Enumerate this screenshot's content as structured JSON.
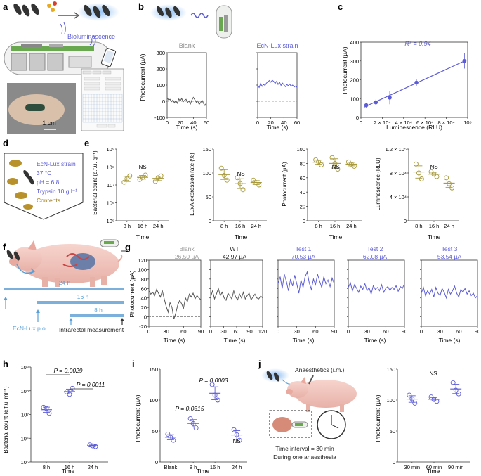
{
  "panel_letters": {
    "a": "a",
    "b": "b",
    "c": "c",
    "d": "d",
    "e": "e",
    "f": "f",
    "g": "g",
    "h": "h",
    "i": "i",
    "j": "j"
  },
  "panel_a": {
    "bioluminescence_label": "Bioluminescence",
    "scale_bar": "1 cm",
    "app_buttons": [
      "Gain",
      "Calibrate",
      "Start",
      "Stop",
      "Save",
      "Load"
    ]
  },
  "panel_b": {
    "ylabel": "Photocurrent (µA)",
    "xlabel": "Time (s)",
    "blank_title": "Blank",
    "strain_title": "EcN-Lux strain",
    "yticks": [
      "300",
      "200",
      "100",
      "0",
      "-100"
    ],
    "xticks": [
      "0",
      "20",
      "40",
      "60"
    ]
  },
  "panel_c": {
    "ylabel": "Photocurrent (µA)",
    "xlabel": "Luminescence (RLU)",
    "r2": "R² = 0.94",
    "yticks": [
      "0",
      "100",
      "200",
      "300",
      "400"
    ],
    "xtick_labels": [
      "0",
      "2 × 10⁴",
      "4 × 10⁴",
      "6 × 10⁴",
      "8 × 10⁴",
      "10⁵"
    ]
  },
  "panel_d": {
    "lines": [
      "EcN-Lux strain",
      "37 °C",
      "pH = 6.8",
      "Trypsin 10 g l⁻¹",
      "Contents"
    ]
  },
  "panel_e": {
    "xlabel": "Time",
    "xticks": [
      "8 h",
      "16 h",
      "24 h"
    ],
    "ns": "NS",
    "p1": {
      "ylabel": "Bacterial count (c.f.u. g⁻¹)",
      "yticks": [
        "10⁹",
        "10⁸",
        "10⁷",
        "10⁶",
        "10⁵"
      ]
    },
    "p2": {
      "ylabel": "LuxA expression rate (%)",
      "yticks": [
        "150",
        "100",
        "50",
        "0"
      ]
    },
    "p3": {
      "ylabel": "Photocurrent (µA)",
      "yticks": [
        "100",
        "80",
        "60",
        "40",
        "20",
        "0"
      ]
    },
    "p4": {
      "ylabel": "Luminescence (RLU)",
      "yticks": [
        "1.2 × 10⁵",
        "8 × 10⁴",
        "4 × 10⁴",
        "0"
      ]
    }
  },
  "panel_f": {
    "d24": "24 h",
    "d16": "16 h",
    "d8": "8 h",
    "oral": "EcN-Lux p.o.",
    "measure": "Intrarectal measurement"
  },
  "panel_g": {
    "ylabel": "Photocurrent (µA)",
    "xlabel": "Time (s)",
    "yticks": [
      "120",
      "100",
      "80",
      "60",
      "40",
      "20",
      "0",
      "-20"
    ],
    "xticks_120": [
      "0",
      "30",
      "60",
      "90",
      "120"
    ],
    "xticks_90": [
      "0",
      "30",
      "60",
      "90"
    ],
    "traces": [
      {
        "name": "Blank",
        "value": "26.50 µA"
      },
      {
        "name": "WT",
        "value": "42.97 µA"
      },
      {
        "name": "Test 1",
        "value": "70.53 µA"
      },
      {
        "name": "Test 2",
        "value": "62.08 µA"
      },
      {
        "name": "Test 3",
        "value": "53.54 µA"
      }
    ]
  },
  "panel_h": {
    "ylabel": "Bacterial count (c.f.u. ml⁻¹)",
    "xlabel": "Time",
    "yticks": [
      "10⁹",
      "10⁸",
      "10⁷",
      "10⁶",
      "10⁵"
    ],
    "xticks": [
      "8 h",
      "16 h",
      "24 h"
    ],
    "p1": "P = 0.0029",
    "p2": "P = 0.0011"
  },
  "panel_i": {
    "ylabel": "Photocurrent (µA)",
    "xlabel": "Time",
    "yticks": [
      "0",
      "50",
      "100",
      "150"
    ],
    "xticks": [
      "Blank",
      "8 h",
      "16 h",
      "24 h"
    ],
    "p1": "P = 0.0315",
    "p2": "P = 0.0003",
    "ns": "NS"
  },
  "panel_j": {
    "anaesthetics": "Anaesthetics (i.m.)",
    "interval": "Time interval = 30 min",
    "during": "During one anaesthesia",
    "ylabel": "Photocurrent (µA)",
    "xlabel": "Time",
    "yticks": [
      "0",
      "50",
      "100",
      "150"
    ],
    "xticks": [
      "30 min",
      "60 min",
      "90 min"
    ],
    "ns": "NS"
  },
  "chart_data": [
    {
      "type": "line",
      "id": "b_blank",
      "title": "Blank",
      "x_range": [
        0,
        60
      ],
      "ylim": [
        -100,
        300
      ],
      "values": [
        22,
        8,
        12,
        -2,
        8,
        -10,
        4,
        -12,
        14,
        2,
        18,
        -4,
        6,
        12,
        -8,
        2,
        -16,
        8,
        24,
        10,
        -6,
        2,
        -20,
        -8,
        6,
        -14,
        -26,
        -10
      ]
    },
    {
      "type": "line",
      "id": "b_strain",
      "title": "EcN-Lux strain",
      "x_range": [
        0,
        60
      ],
      "ylim": [
        -100,
        300
      ],
      "values": [
        95,
        85,
        110,
        92,
        104,
        98,
        112,
        120,
        128,
        118,
        130,
        122,
        110,
        124,
        104,
        118,
        98,
        112,
        102,
        90,
        104,
        96,
        106,
        92,
        100,
        88,
        94,
        86
      ]
    },
    {
      "type": "scatter",
      "id": "c",
      "xlim": [
        0,
        100000
      ],
      "ylim": [
        0,
        400
      ],
      "points": [
        {
          "x": 5000,
          "y": 65,
          "err": 12
        },
        {
          "x": 14000,
          "y": 80,
          "err": 15
        },
        {
          "x": 27000,
          "y": 105,
          "err": 35
        },
        {
          "x": 52000,
          "y": 185,
          "err": 20
        },
        {
          "x": 97000,
          "y": 300,
          "err": 40
        }
      ],
      "fit": {
        "x": [
          3000,
          97000
        ],
        "y": [
          55,
          300
        ]
      }
    },
    {
      "type": "scatter",
      "id": "e1",
      "log": true,
      "ylim": [
        5,
        9
      ],
      "groups": [
        [
          7.15,
          7.5,
          7.35
        ],
        [
          7.3,
          7.55,
          7.42
        ],
        [
          7.2,
          7.5,
          7.4
        ]
      ]
    },
    {
      "type": "scatter",
      "id": "e2",
      "ylim": [
        0,
        150
      ],
      "groups": [
        [
          110,
          85,
          95
        ],
        [
          90,
          65,
          78
        ],
        [
          85,
          75,
          80
        ]
      ]
    },
    {
      "type": "scatter",
      "id": "e3",
      "ylim": [
        0,
        100
      ],
      "groups": [
        [
          85,
          78,
          82
        ],
        [
          88,
          72,
          80
        ],
        [
          82,
          76,
          79
        ]
      ]
    },
    {
      "type": "scatter",
      "id": "e4",
      "ylim": [
        0,
        120000
      ],
      "groups": [
        [
          95000,
          70000,
          80000
        ],
        [
          82000,
          74000,
          78000
        ],
        [
          72000,
          55000,
          62000
        ]
      ]
    },
    {
      "type": "line",
      "id": "g_blank",
      "xmax": 90,
      "ylim": [
        -20,
        120
      ],
      "values": [
        55,
        48,
        52,
        45,
        58,
        50,
        42,
        55,
        38,
        22,
        10,
        30,
        20,
        -5,
        8,
        25,
        35,
        28,
        18,
        40,
        32,
        48,
        42,
        50,
        38,
        45,
        40,
        36
      ]
    },
    {
      "type": "line",
      "id": "g_wt",
      "xmax": 120,
      "ylim": [
        -20,
        120
      ],
      "values": [
        42,
        55,
        38,
        48,
        60,
        45,
        52,
        40,
        35,
        50,
        44,
        38,
        55,
        42,
        36,
        48,
        40,
        52,
        38,
        45,
        50,
        36,
        42,
        48,
        40,
        38,
        44,
        40
      ]
    },
    {
      "type": "line",
      "id": "g_t1",
      "xmax": 90,
      "ylim": [
        -20,
        120
      ],
      "values": [
        70,
        85,
        60,
        90,
        75,
        55,
        80,
        65,
        88,
        70,
        50,
        78,
        62,
        85,
        95,
        72,
        58,
        80,
        68,
        90,
        75,
        62,
        85,
        70,
        78,
        64,
        82,
        70
      ]
    },
    {
      "type": "line",
      "id": "g_t2",
      "xmax": 90,
      "ylim": [
        -20,
        120
      ],
      "values": [
        62,
        72,
        55,
        68,
        60,
        52,
        65,
        58,
        70,
        55,
        62,
        48,
        66,
        58,
        62,
        55,
        68,
        52,
        60,
        64,
        56,
        62,
        58,
        66,
        54,
        64,
        60,
        70
      ]
    },
    {
      "type": "line",
      "id": "g_t3",
      "xmax": 90,
      "ylim": [
        -20,
        120
      ],
      "values": [
        50,
        62,
        45,
        55,
        48,
        58,
        42,
        62,
        50,
        45,
        60,
        52,
        40,
        58,
        48,
        55,
        65,
        50,
        42,
        58,
        52,
        60,
        48,
        55,
        45,
        50,
        40,
        45
      ]
    },
    {
      "type": "scatter",
      "id": "h",
      "log": true,
      "ylim": [
        5,
        9
      ],
      "groups": [
        [
          7.3,
          7.05,
          7.25
        ],
        [
          7.95,
          8.1,
          7.85
        ],
        [
          5.72,
          5.65,
          5.68
        ]
      ]
    },
    {
      "type": "scatter",
      "id": "i",
      "ylim": [
        0,
        150
      ],
      "groups": [
        [
          45,
          35,
          40
        ],
        [
          70,
          55,
          62
        ],
        [
          125,
          100,
          108
        ],
        [
          52,
          35,
          44
        ]
      ]
    },
    {
      "type": "scatter",
      "id": "j",
      "ylim": [
        0,
        150
      ],
      "groups": [
        [
          108,
          95,
          102
        ],
        [
          105,
          98,
          101
        ],
        [
          128,
          110,
          116
        ]
      ]
    }
  ]
}
